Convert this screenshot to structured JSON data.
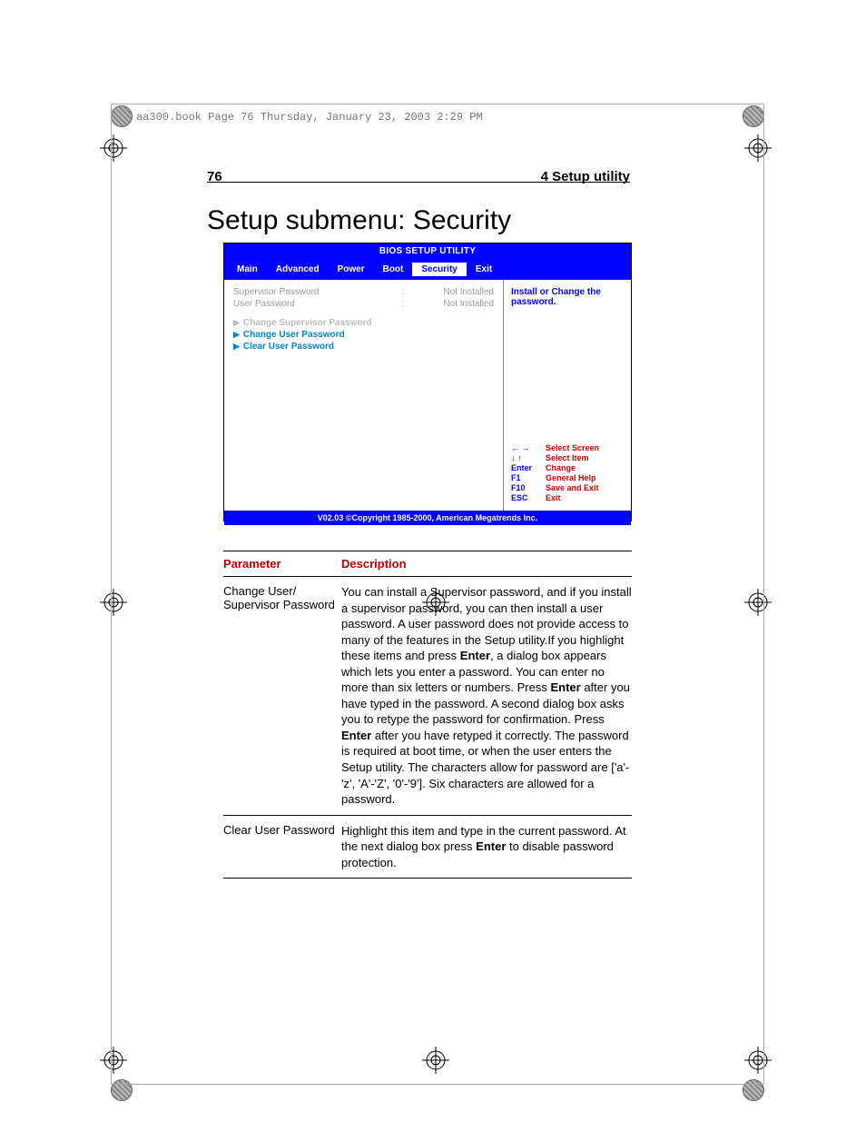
{
  "header_text": "aa300.book  Page 76  Thursday, January 23, 2003  2:29 PM",
  "page_number": "76",
  "page_section": "4 Setup utility",
  "title": "Setup submenu: Security",
  "bios": {
    "title": "BIOS SETUP UTILITY",
    "tabs": [
      "Main",
      "Advanced",
      "Power",
      "Boot",
      "Security",
      "Exit"
    ],
    "selected_tab": "Security",
    "status_rows": [
      {
        "label": "Supervisor Password",
        "sep": ":",
        "value": "Not Installed"
      },
      {
        "label": "User Password",
        "sep": ":",
        "value": "Not Installed"
      }
    ],
    "menu_items": [
      {
        "label": "Change Supervisor Password",
        "selected": true
      },
      {
        "label": "Change User Password",
        "selected": false
      },
      {
        "label": "Clear User Password",
        "selected": false
      }
    ],
    "help_text": "Install or Change the password.",
    "nav": [
      {
        "key": "← →",
        "label": "Select Screen"
      },
      {
        "key": "↓ ↑",
        "label": "Select Item"
      },
      {
        "key": "Enter",
        "label": "Change"
      },
      {
        "key": "F1",
        "label": "General Help"
      },
      {
        "key": "F10",
        "label": "Save and Exit"
      },
      {
        "key": "ESC",
        "label": "Exit"
      }
    ],
    "footer": "V02.03 ©Copyright 1985-2000, American Megatrends Inc."
  },
  "table": {
    "head": {
      "c1": "Parameter",
      "c2": "Description"
    },
    "rows": [
      {
        "param": "Change User/\nSupervisor Password",
        "desc_parts": [
          "You can install a Supervisor password, and if you install a supervisor password, you can then install a user password. A user password does not provide access to many of the features in the Setup utility.If you highlight these items and press ",
          "Enter",
          ", a dialog box appears which lets you enter a password. You can enter no more than six letters or numbers. Press ",
          "Enter",
          " after you have typed in the password. A second dialog box asks you to retype the password for confirmation. Press ",
          "Enter",
          " after you have retyped it correctly. The password is required at boot time, or when the user enters the Setup utility. The characters allow for password are ['a'-'z', 'A'-'Z', '0'-'9']. Six characters are allowed for a password."
        ]
      },
      {
        "param": "Clear User Password",
        "desc_parts": [
          "Highlight this item and type in the current password. At the next dialog box press ",
          "Enter",
          " to disable password protection."
        ]
      }
    ]
  }
}
